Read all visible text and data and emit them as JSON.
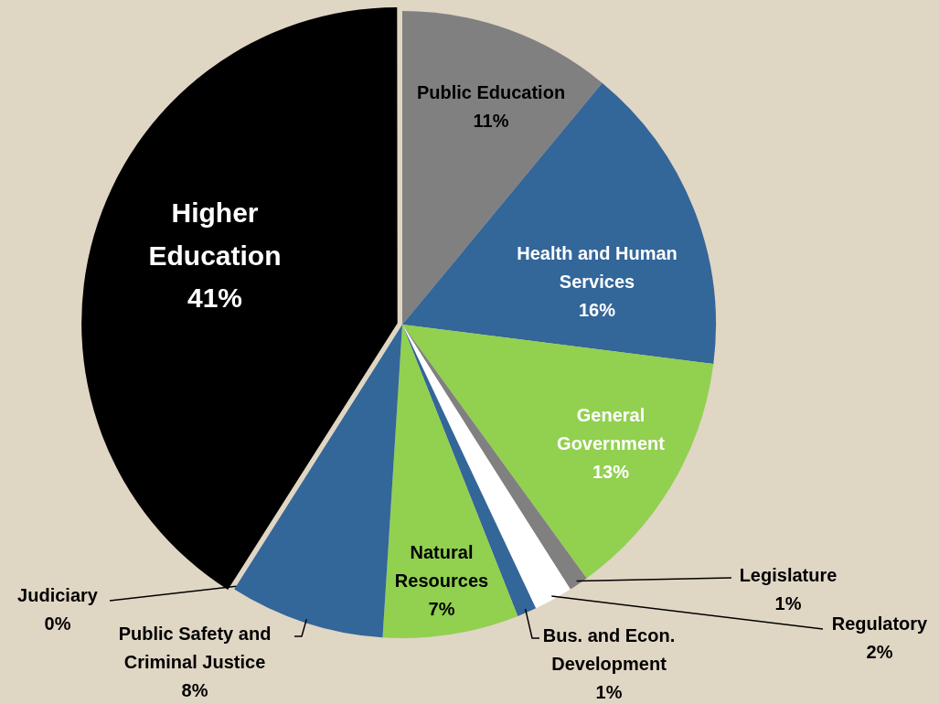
{
  "chart_data": {
    "type": "pie",
    "categories": [
      "Public Education",
      "Health and Human Services",
      "General Government",
      "Legislature",
      "Regulatory",
      "Bus. and Econ. Development",
      "Natural Resources",
      "Public Safety and Criminal Justice",
      "Judiciary",
      "Higher Education"
    ],
    "values": [
      11,
      16,
      13,
      1,
      2,
      1,
      7,
      8,
      0,
      41
    ],
    "value_labels": [
      "11%",
      "16%",
      "13%",
      "1%",
      "2%",
      "1%",
      "7%",
      "8%",
      "0%",
      "41%"
    ],
    "colors": [
      "#808080",
      "#336699",
      "#92d050",
      "#808080",
      "#ffffff",
      "#336699",
      "#92d050",
      "#336699",
      "#336699",
      "#000000"
    ],
    "legend": false
  }
}
